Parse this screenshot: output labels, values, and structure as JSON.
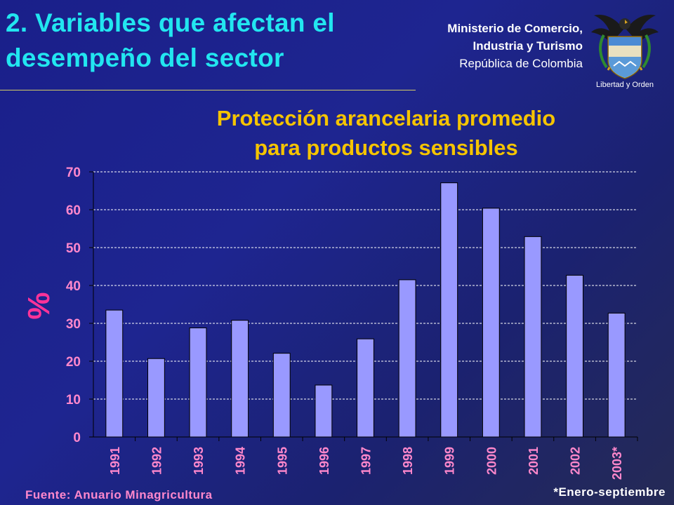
{
  "header": {
    "slide_title_line1": "2. Variables que afectan el",
    "slide_title_line2": "desempeño del sector",
    "ministry_line1": "Ministerio de Comercio,",
    "ministry_line2": "Industria y Turismo",
    "ministry_line3": "República de Colombia",
    "crest_motto": "Libertad y Orden"
  },
  "chart_data": {
    "type": "bar",
    "title_line1": "Protección arancelaria promedio",
    "title_line2": "para productos sensibles",
    "ylabel": "%",
    "ylim": [
      0,
      70
    ],
    "yticks": [
      0,
      10,
      20,
      30,
      40,
      50,
      60,
      70
    ],
    "grid": true,
    "categories": [
      "1991",
      "1992",
      "1993",
      "1994",
      "1995",
      "1996",
      "1997",
      "1998",
      "1999",
      "2000",
      "2001",
      "2002",
      "2003*"
    ],
    "values": [
      33.5,
      20.7,
      28.8,
      30.8,
      22.1,
      13.7,
      25.9,
      41.5,
      67.1,
      60.4,
      52.9,
      42.7,
      32.7
    ],
    "colors": {
      "bar": "#9999ff",
      "bar_stroke": "#000000",
      "tick_labels": "#ff88cc",
      "gridline": "#ffffff",
      "title": "#f5c400"
    }
  },
  "footer": {
    "source": "Fuente: Anuario Minagricultura",
    "footnote": "*Enero-septiembre"
  }
}
